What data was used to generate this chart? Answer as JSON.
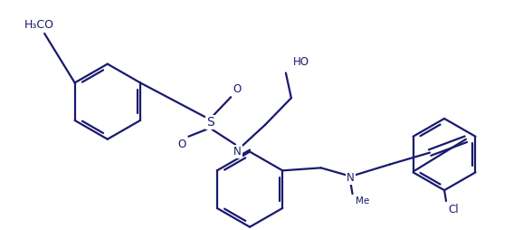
{
  "bg_color": "#ffffff",
  "line_color": "#1a1a6e",
  "line_width": 1.6,
  "font_size": 8.5,
  "font_color": "#1a1a6e",
  "figsize": [
    5.78,
    2.54
  ],
  "dpi": 100,
  "xlim": [
    0,
    578
  ],
  "ylim": [
    0,
    254
  ]
}
